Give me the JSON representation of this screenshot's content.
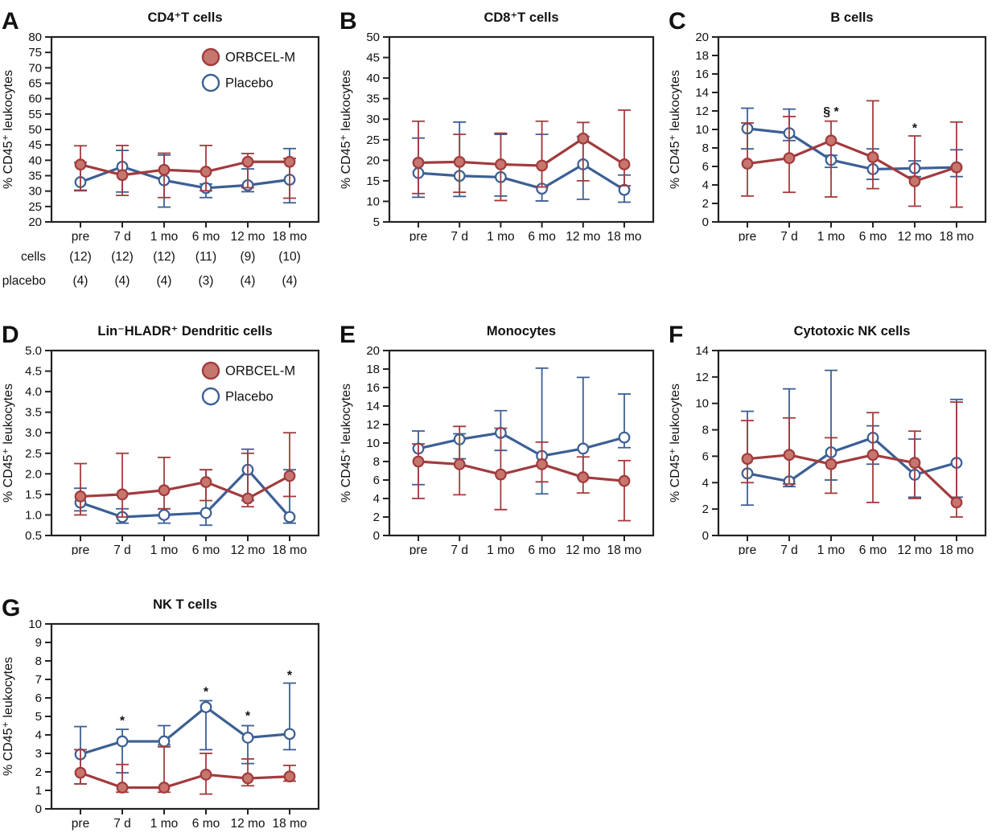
{
  "legend": {
    "orbcel_label": "ORBCEL-M",
    "placebo_label": "Placebo"
  },
  "colors": {
    "orbcel": "#A23B3D",
    "orbcel_fill": "#C7766D",
    "placebo": "#3C5F94",
    "placebo_fill": "#FFFFFF",
    "axis": "#222222",
    "text": "#111111"
  },
  "categories": [
    "pre",
    "7 d",
    "1 mo",
    "6 mo",
    "12 mo",
    "18 mo"
  ],
  "counts_table": {
    "rows": [
      {
        "label": "cells",
        "values": [
          "(12)",
          "(12)",
          "(12)",
          "(11)",
          "(9)",
          "(10)"
        ]
      },
      {
        "label": "placebo",
        "values": [
          "(4)",
          "(4)",
          "(4)",
          "(3)",
          "(4)",
          "(4)"
        ]
      }
    ]
  },
  "chart_data": [
    {
      "type": "line",
      "letter": "A",
      "title": "CD4⁺T cells",
      "ylabel": "% CD45⁺ leukocytes",
      "ylim": [
        20,
        80
      ],
      "ytick_step": 5,
      "ytick_decimals": 0,
      "categories": [
        "pre",
        "7 d",
        "1 mo",
        "6 mo",
        "12 mo",
        "18 mo"
      ],
      "legend": true,
      "show_counts_table": true,
      "annotations": [],
      "series": [
        {
          "name": "ORBCEL-M",
          "key": "orbcel",
          "values": [
            38.6,
            35.2,
            36.9,
            36.3,
            39.5,
            39.5
          ],
          "err_lo": [
            30.1,
            28.6,
            27.9,
            30.1,
            31.1,
            27.7
          ],
          "err_hi": [
            44.7,
            44.8,
            42.3,
            44.8,
            42.2,
            40.6
          ]
        },
        {
          "name": "Placebo",
          "key": "placebo",
          "values": [
            32.9,
            37.9,
            33.5,
            31.0,
            31.9,
            33.7
          ],
          "err_lo": [
            30.3,
            29.7,
            24.8,
            27.9,
            29.8,
            26.2
          ],
          "err_hi": [
            39.3,
            43.2,
            41.7,
            32.3,
            37.2,
            43.8
          ]
        }
      ]
    },
    {
      "type": "line",
      "letter": "B",
      "title": "CD8⁺T cells",
      "ylabel": "% CD45⁺ leukocytes",
      "ylim": [
        5,
        50
      ],
      "ytick_step": 5,
      "ytick_decimals": 0,
      "categories": [
        "pre",
        "7 d",
        "1 mo",
        "6 mo",
        "12 mo",
        "18 mo"
      ],
      "legend": false,
      "show_counts_table": false,
      "annotations": [],
      "series": [
        {
          "name": "ORBCEL-M",
          "key": "orbcel",
          "values": [
            19.4,
            19.6,
            19.0,
            18.7,
            25.3,
            19.0
          ],
          "err_lo": [
            11.9,
            12.2,
            10.2,
            13.5,
            15.0,
            13.8
          ],
          "err_hi": [
            29.5,
            26.3,
            26.6,
            29.5,
            29.2,
            32.2
          ]
        },
        {
          "name": "Placebo",
          "key": "placebo",
          "values": [
            16.9,
            16.2,
            15.9,
            13.1,
            19.0,
            12.8
          ],
          "err_lo": [
            11.0,
            11.2,
            11.3,
            10.1,
            10.5,
            9.8
          ],
          "err_hi": [
            25.4,
            29.3,
            26.3,
            26.3,
            25.8,
            16.4
          ]
        }
      ]
    },
    {
      "type": "line",
      "letter": "C",
      "title": "B cells",
      "ylabel": "% CD45⁺ leukocytes",
      "ylim": [
        0,
        20
      ],
      "ytick_step": 2,
      "ytick_decimals": 0,
      "categories": [
        "pre",
        "7 d",
        "1 mo",
        "6 mo",
        "12 mo",
        "18 mo"
      ],
      "legend": false,
      "show_counts_table": false,
      "annotations": [
        {
          "x": 2,
          "y": 11.5,
          "text": "§ *"
        },
        {
          "x": 4,
          "y": 9.7,
          "text": "*"
        }
      ],
      "series": [
        {
          "name": "ORBCEL-M",
          "key": "orbcel",
          "values": [
            6.3,
            6.9,
            8.8,
            7.0,
            4.4,
            5.9
          ],
          "err_lo": [
            2.8,
            3.2,
            2.7,
            3.6,
            1.7,
            1.6
          ],
          "err_hi": [
            10.7,
            11.4,
            10.9,
            13.1,
            9.3,
            10.8
          ]
        },
        {
          "name": "Placebo",
          "key": "placebo",
          "values": [
            10.1,
            9.6,
            6.7,
            5.7,
            5.8,
            5.9
          ],
          "err_lo": [
            7.9,
            8.8,
            5.9,
            4.6,
            4.9,
            4.9
          ],
          "err_hi": [
            12.3,
            12.2,
            7.2,
            7.9,
            6.6,
            7.8
          ]
        }
      ]
    },
    {
      "type": "line",
      "letter": "D",
      "title": "Lin⁻HLADR⁺ Dendritic cells",
      "ylabel": "% CD45⁺ leukocytes",
      "ylim": [
        0.5,
        5.0
      ],
      "ytick_step": 0.5,
      "ytick_decimals": 1,
      "categories": [
        "pre",
        "7 d",
        "1 mo",
        "6 mo",
        "12 mo",
        "18 mo"
      ],
      "legend": true,
      "show_counts_table": false,
      "annotations": [],
      "series": [
        {
          "name": "ORBCEL-M",
          "key": "orbcel",
          "values": [
            1.45,
            1.5,
            1.6,
            1.8,
            1.4,
            1.95
          ],
          "err_lo": [
            1.0,
            0.95,
            1.15,
            1.35,
            1.2,
            1.45
          ],
          "err_hi": [
            2.25,
            2.5,
            2.4,
            2.1,
            2.5,
            3.0
          ]
        },
        {
          "name": "Placebo",
          "key": "placebo",
          "values": [
            1.3,
            0.95,
            1.0,
            1.05,
            2.1,
            0.95
          ],
          "err_lo": [
            1.1,
            0.8,
            0.8,
            0.75,
            1.35,
            0.8
          ],
          "err_hi": [
            1.65,
            1.15,
            1.15,
            2.1,
            2.6,
            2.1
          ]
        }
      ]
    },
    {
      "type": "line",
      "letter": "E",
      "title": "Monocytes",
      "ylabel": "% CD45⁺ leukocytes",
      "ylim": [
        0,
        20
      ],
      "ytick_step": 2,
      "ytick_decimals": 0,
      "categories": [
        "pre",
        "7 d",
        "1 mo",
        "6 mo",
        "12 mo",
        "18 mo"
      ],
      "legend": false,
      "show_counts_table": false,
      "annotations": [],
      "series": [
        {
          "name": "ORBCEL-M",
          "key": "orbcel",
          "values": [
            8.0,
            7.7,
            6.6,
            7.7,
            6.3,
            5.9
          ],
          "err_lo": [
            4.0,
            4.4,
            2.8,
            5.8,
            4.6,
            1.6
          ],
          "err_hi": [
            9.9,
            11.8,
            11.6,
            10.1,
            8.5,
            8.1
          ]
        },
        {
          "name": "Placebo",
          "key": "placebo",
          "values": [
            9.4,
            10.4,
            11.1,
            8.6,
            9.4,
            10.6
          ],
          "err_lo": [
            5.5,
            8.3,
            9.2,
            4.5,
            6.3,
            9.5
          ],
          "err_hi": [
            11.3,
            11.0,
            13.5,
            18.1,
            17.1,
            15.3
          ]
        }
      ]
    },
    {
      "type": "line",
      "letter": "F",
      "title": "Cytotoxic NK cells",
      "ylabel": "% CD45⁺ leukocytes",
      "ylim": [
        0,
        14
      ],
      "ytick_step": 2,
      "ytick_decimals": 0,
      "categories": [
        "pre",
        "7 d",
        "1 mo",
        "6 mo",
        "12 mo",
        "18 mo"
      ],
      "legend": false,
      "show_counts_table": false,
      "annotations": [],
      "series": [
        {
          "name": "ORBCEL-M",
          "key": "orbcel",
          "values": [
            5.8,
            6.1,
            5.4,
            6.1,
            5.5,
            2.5
          ],
          "err_lo": [
            4.0,
            3.9,
            3.2,
            2.5,
            2.8,
            1.4
          ],
          "err_hi": [
            8.7,
            8.9,
            7.4,
            9.3,
            7.9,
            10.1
          ]
        },
        {
          "name": "Placebo",
          "key": "placebo",
          "values": [
            4.7,
            4.1,
            6.3,
            7.4,
            4.6,
            5.5
          ],
          "err_lo": [
            2.3,
            3.7,
            4.2,
            5.4,
            2.9,
            2.9
          ],
          "err_hi": [
            9.4,
            11.1,
            12.5,
            8.3,
            7.3,
            10.3
          ]
        }
      ]
    },
    {
      "type": "line",
      "letter": "G",
      "title": "NK T cells",
      "ylabel": "% CD45⁺ leukocytes",
      "ylim": [
        0,
        10
      ],
      "ytick_step": 1,
      "ytick_decimals": 0,
      "categories": [
        "pre",
        "7 d",
        "1 mo",
        "6 mo",
        "12 mo",
        "18 mo"
      ],
      "legend": false,
      "show_counts_table": false,
      "annotations": [
        {
          "x": 1,
          "y": 4.55,
          "text": "*"
        },
        {
          "x": 3,
          "y": 6.1,
          "text": "*"
        },
        {
          "x": 4,
          "y": 4.8,
          "text": "*"
        },
        {
          "x": 5,
          "y": 7.0,
          "text": "*"
        }
      ],
      "series": [
        {
          "name": "ORBCEL-M",
          "key": "orbcel",
          "values": [
            1.95,
            1.15,
            1.15,
            1.85,
            1.65,
            1.75
          ],
          "err_lo": [
            1.35,
            0.9,
            0.9,
            0.8,
            1.25,
            1.5
          ],
          "err_hi": [
            3.2,
            2.4,
            3.35,
            3.0,
            2.7,
            2.35
          ]
        },
        {
          "name": "Placebo",
          "key": "placebo",
          "values": [
            2.95,
            3.65,
            3.65,
            5.5,
            3.85,
            4.05
          ],
          "err_lo": [
            1.35,
            1.95,
            3.45,
            3.2,
            2.45,
            3.2
          ],
          "err_hi": [
            4.45,
            4.3,
            4.5,
            5.85,
            4.5,
            6.8
          ]
        }
      ]
    }
  ]
}
